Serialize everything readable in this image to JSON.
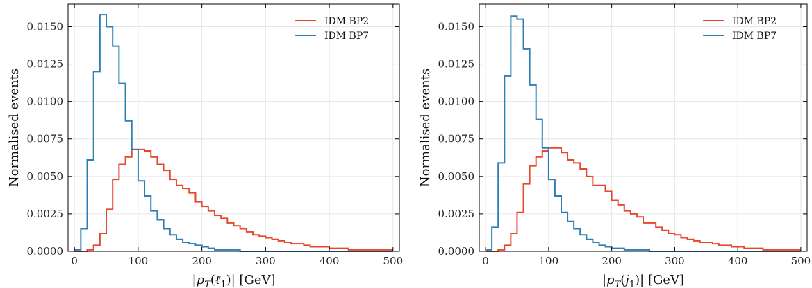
{
  "chart_data": [
    {
      "type": "line",
      "step": true,
      "title": "",
      "xlabel": "|p_T(ℓ_1)| [GeV]",
      "ylabel": "Normalised events",
      "xlim": [
        -10,
        510
      ],
      "ylim": [
        0,
        0.0165
      ],
      "xticks": [
        0,
        100,
        200,
        300,
        400,
        500
      ],
      "xtick_labels": [
        "0",
        "100",
        "200",
        "300",
        "400",
        "500"
      ],
      "yticks": [
        0,
        0.0025,
        0.005,
        0.0075,
        0.01,
        0.0125,
        0.015
      ],
      "ytick_labels": [
        "0.0000",
        "0.0025",
        "0.0050",
        "0.0075",
        "0.0100",
        "0.0125",
        "0.0150"
      ],
      "grid": true,
      "legend_position": "top-right",
      "bin_width": 10,
      "bin_start": 0,
      "series": [
        {
          "name": "IDM BP2",
          "color": "#e8472e",
          "values": [
            0.0,
            0.0,
            0.0001,
            0.0004,
            0.0012,
            0.0028,
            0.0048,
            0.0058,
            0.0063,
            0.0068,
            0.0068,
            0.0067,
            0.0063,
            0.0058,
            0.0054,
            0.0048,
            0.0044,
            0.0042,
            0.0039,
            0.0033,
            0.003,
            0.0027,
            0.0024,
            0.0022,
            0.0019,
            0.0017,
            0.0015,
            0.0013,
            0.0011,
            0.001,
            0.0009,
            0.0008,
            0.0007,
            0.0006,
            0.0005,
            0.0005,
            0.0004,
            0.0003,
            0.0003,
            0.0003,
            0.0002,
            0.0002,
            0.0002,
            0.0001,
            0.0001,
            0.0001,
            0.0001,
            0.0001,
            0.0001,
            0.0001
          ]
        },
        {
          "name": "IDM BP7",
          "color": "#2f7fb5",
          "values": [
            0.0001,
            0.0015,
            0.0061,
            0.012,
            0.0158,
            0.015,
            0.0137,
            0.0112,
            0.0087,
            0.0068,
            0.0047,
            0.0037,
            0.0027,
            0.0021,
            0.0015,
            0.0011,
            0.0008,
            0.0006,
            0.0005,
            0.0004,
            0.0003,
            0.0002,
            0.0001,
            0.0001,
            0.0001,
            0.0001,
            0.0,
            0.0,
            0.0,
            0.0,
            0.0,
            0.0,
            0.0,
            0.0,
            0.0,
            0.0,
            0.0,
            0.0,
            0.0,
            0.0,
            0.0,
            0.0,
            0.0,
            0.0,
            0.0,
            0.0,
            0.0,
            0.0,
            0.0,
            0.0
          ]
        }
      ]
    },
    {
      "type": "line",
      "step": true,
      "title": "",
      "xlabel": "|p_T(j_1)| [GeV]",
      "ylabel": "Normalised events",
      "xlim": [
        -10,
        510
      ],
      "ylim": [
        0,
        0.0165
      ],
      "xticks": [
        0,
        100,
        200,
        300,
        400,
        500
      ],
      "xtick_labels": [
        "0",
        "100",
        "200",
        "300",
        "400",
        "500"
      ],
      "yticks": [
        0,
        0.0025,
        0.005,
        0.0075,
        0.01,
        0.0125,
        0.015
      ],
      "ytick_labels": [
        "0.0000",
        "0.0025",
        "0.0050",
        "0.0075",
        "0.0100",
        "0.0125",
        "0.0150"
      ],
      "grid": true,
      "legend_position": "top-right",
      "bin_width": 10,
      "bin_start": 0,
      "series": [
        {
          "name": "IDM BP2",
          "color": "#e8472e",
          "values": [
            0.0,
            0.0,
            0.0001,
            0.0004,
            0.0012,
            0.0026,
            0.0045,
            0.0057,
            0.0063,
            0.0067,
            0.0069,
            0.0069,
            0.0066,
            0.0061,
            0.0059,
            0.0055,
            0.005,
            0.0044,
            0.0044,
            0.004,
            0.0034,
            0.0031,
            0.0027,
            0.0025,
            0.0023,
            0.0019,
            0.0019,
            0.0016,
            0.0014,
            0.0012,
            0.0011,
            0.0009,
            0.0008,
            0.0007,
            0.0006,
            0.0006,
            0.0005,
            0.0004,
            0.0004,
            0.0003,
            0.0003,
            0.0002,
            0.0002,
            0.0002,
            0.0001,
            0.0001,
            0.0001,
            0.0001,
            0.0001,
            0.0001
          ]
        },
        {
          "name": "IDM BP7",
          "color": "#2f7fb5",
          "values": [
            0.0001,
            0.0016,
            0.0059,
            0.0117,
            0.0157,
            0.0155,
            0.0135,
            0.0111,
            0.0088,
            0.0069,
            0.0048,
            0.0037,
            0.0026,
            0.002,
            0.0015,
            0.0011,
            0.0008,
            0.0006,
            0.0004,
            0.0003,
            0.0002,
            0.0002,
            0.0001,
            0.0001,
            0.0001,
            0.0001,
            0.0,
            0.0,
            0.0,
            0.0,
            0.0,
            0.0,
            0.0,
            0.0,
            0.0,
            0.0,
            0.0,
            0.0,
            0.0,
            0.0,
            0.0,
            0.0,
            0.0,
            0.0,
            0.0,
            0.0,
            0.0,
            0.0,
            0.0,
            0.0
          ]
        }
      ]
    }
  ]
}
